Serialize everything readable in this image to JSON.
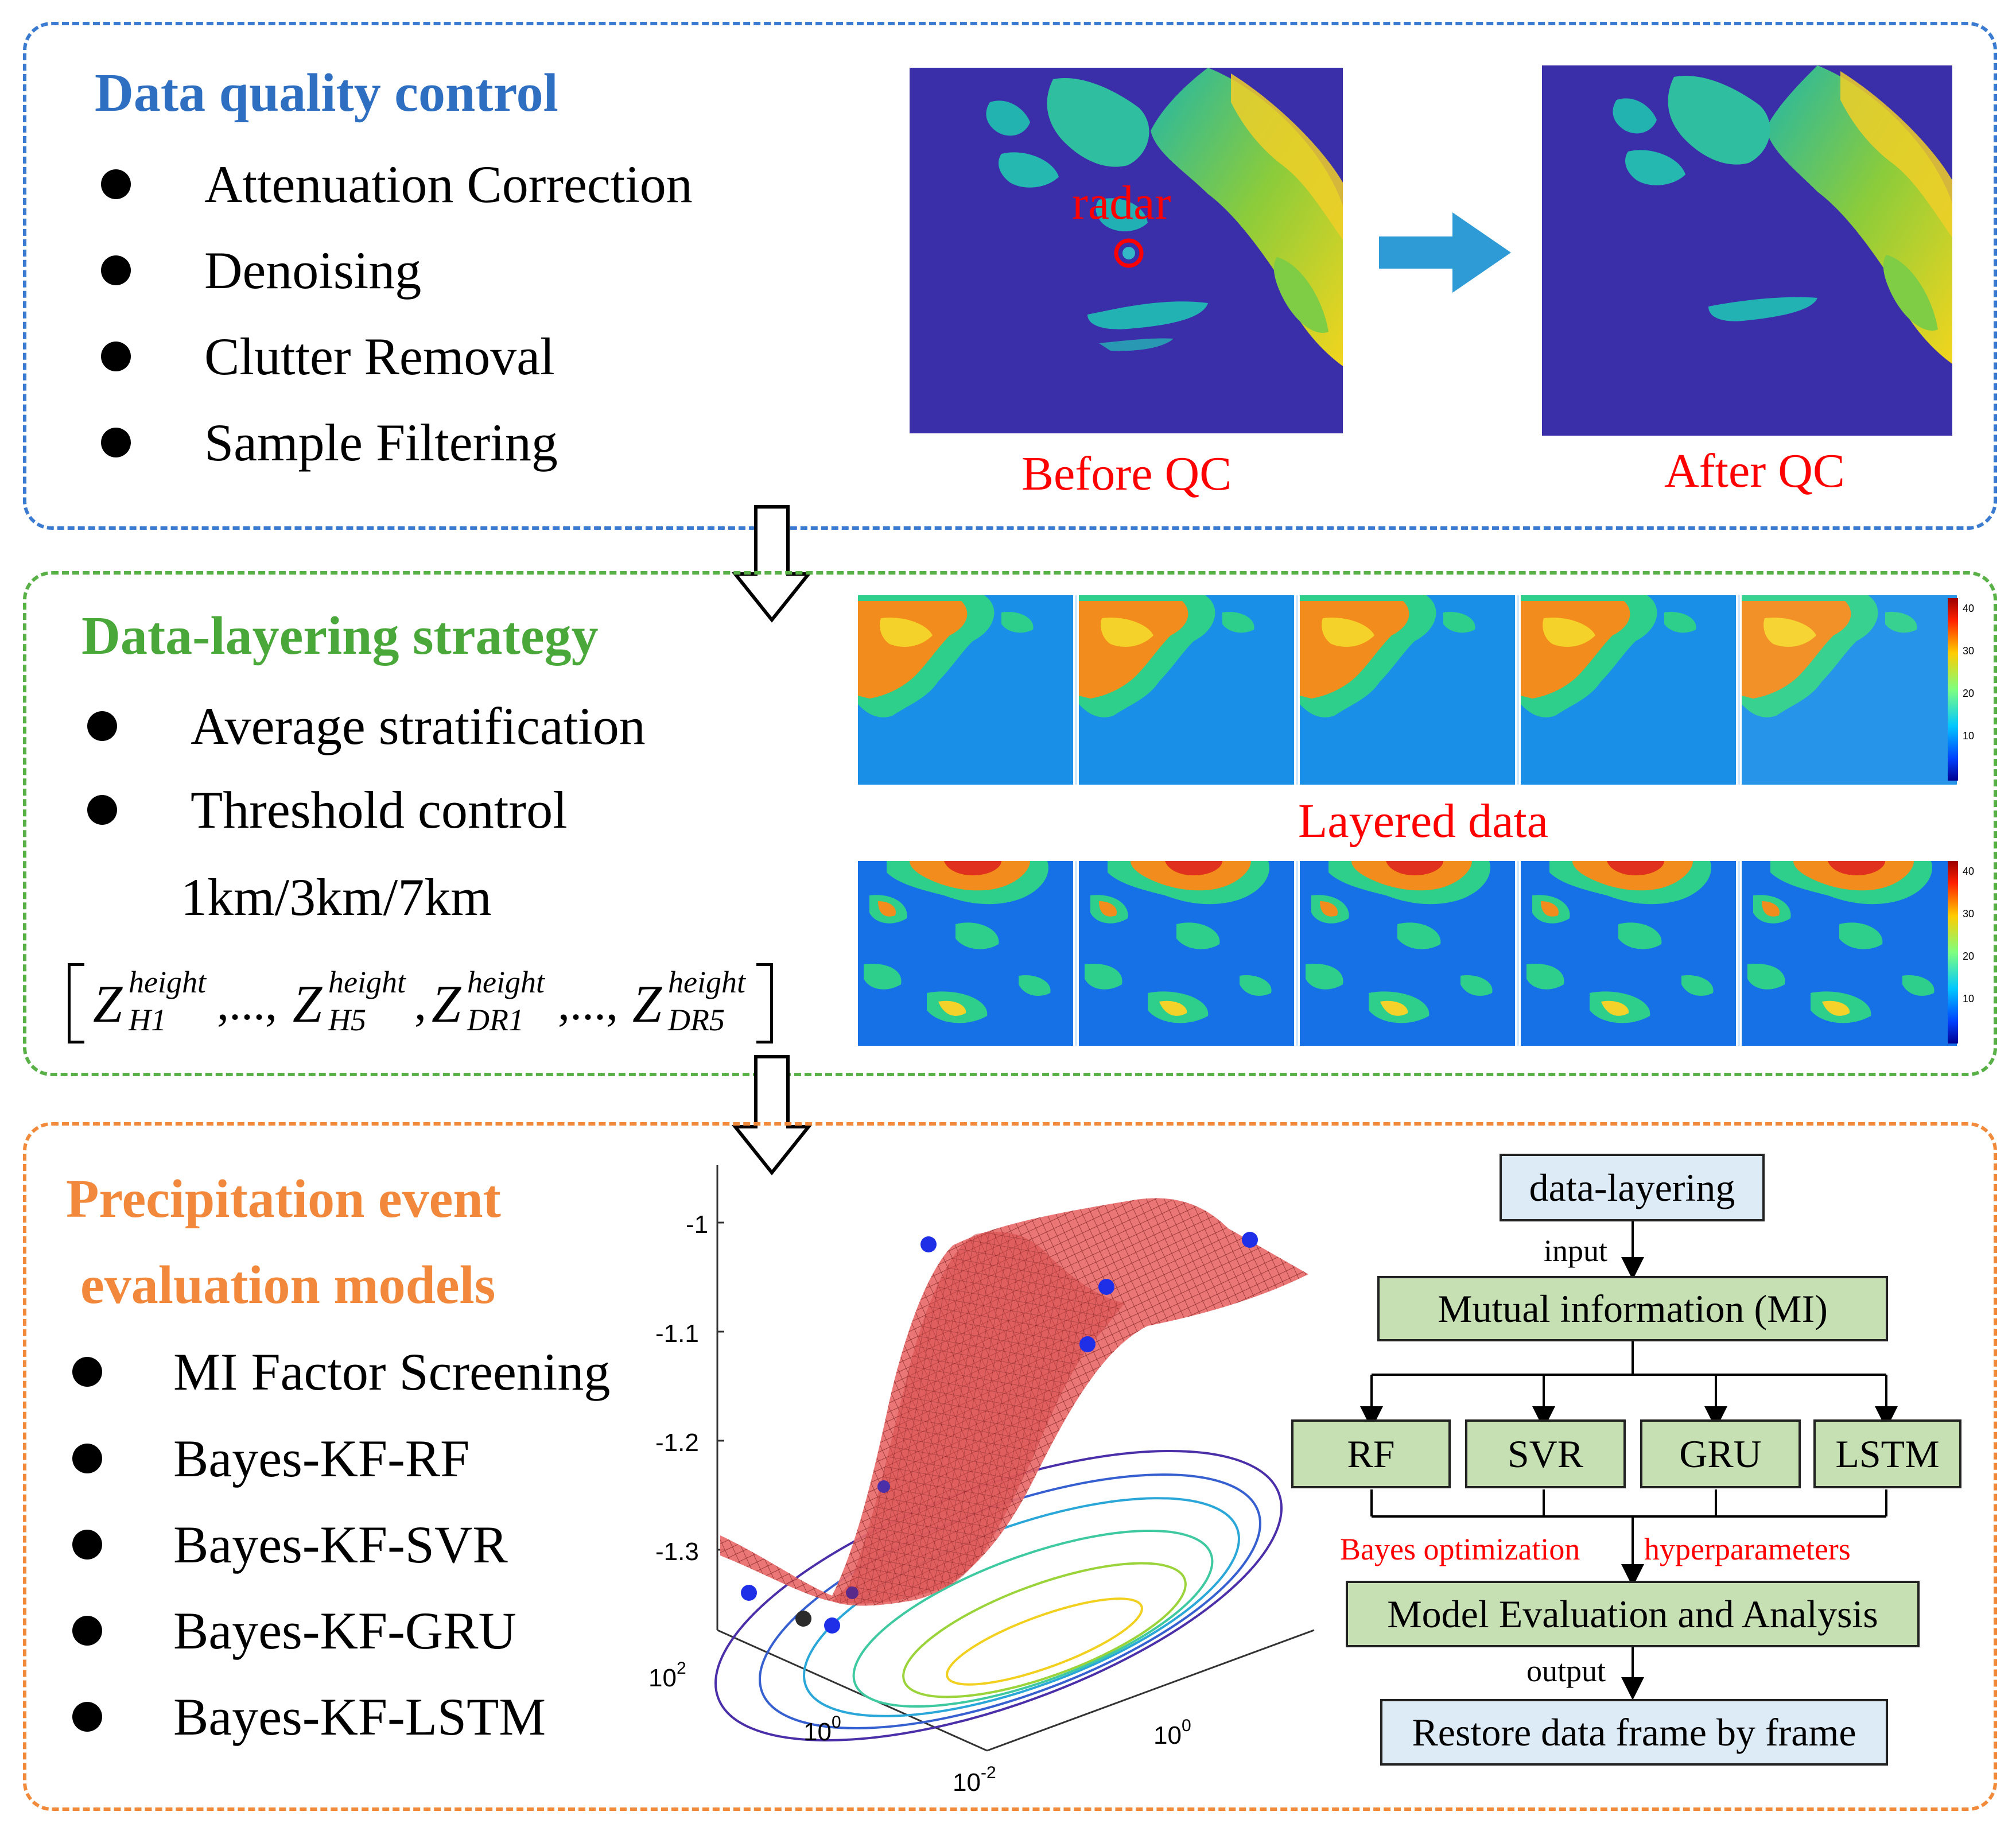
{
  "colors": {
    "qc_border": "#3a7ad1",
    "layer_border": "#58b047",
    "eval_border": "#f28a3c",
    "qc_title": "#2f6fc2",
    "layer_title": "#4aa83a",
    "eval_title": "#f2883b",
    "annotation_red": "#ff0000",
    "arrow_blue": "#2e9bd6",
    "radar_bg": "#3a2fa8",
    "surface_red": "#e04848",
    "flow_green": "#c6e0b4",
    "flow_blue": "#ddebf7"
  },
  "qc": {
    "title": "Data quality control",
    "items": [
      "Attenuation Correction",
      "Denoising",
      "Clutter Removal",
      "Sample Filtering"
    ],
    "radar_label": "radar",
    "before_caption": "Before QC",
    "after_caption": "After QC"
  },
  "layering": {
    "title": "Data-layering strategy",
    "items": [
      "Average stratification",
      "Threshold control"
    ],
    "heights": "1km/3km/7km",
    "formula": {
      "variables": [
        {
          "base": "Z",
          "sup": "height",
          "sub": "H1"
        },
        {
          "base": "Z",
          "sup": "height",
          "sub": "H5"
        },
        {
          "base": "Z",
          "sup": "height",
          "sub": "DR1"
        },
        {
          "base": "Z",
          "sup": "height",
          "sub": "DR5"
        }
      ],
      "ellipsis": ",...,",
      "comma": ","
    },
    "layered_caption": "Layered data",
    "colorbar_ticks": [
      "40",
      "30",
      "20",
      "10"
    ]
  },
  "evaluation": {
    "title_line1": "Precipitation event",
    "title_line2": "evaluation models",
    "items": [
      "MI Factor Screening",
      "Bayes-KF-RF",
      "Bayes-KF-SVR",
      "Bayes-KF-GRU",
      "Bayes-KF-LSTM"
    ],
    "plot": {
      "z_ticks": [
        "-1",
        "-1.1",
        "-1.2",
        "-1.3"
      ],
      "x_ticks": [
        {
          "base": "10",
          "exp": "2"
        },
        {
          "base": "10",
          "exp": "0"
        },
        {
          "base": "10",
          "exp": "-2"
        }
      ],
      "y_ticks": [
        {
          "base": "10",
          "exp": "0"
        }
      ]
    },
    "flow": {
      "top": "data-layering",
      "input_label": "input",
      "mi": "Mutual information (MI)",
      "models": [
        "RF",
        "SVR",
        "GRU",
        "LSTM"
      ],
      "bayes_label_left": "Bayes optimization",
      "bayes_label_right": "hyperparameters",
      "evaluation": "Model Evaluation and Analysis",
      "output_label": "output",
      "restore": "Restore data frame by frame"
    }
  }
}
